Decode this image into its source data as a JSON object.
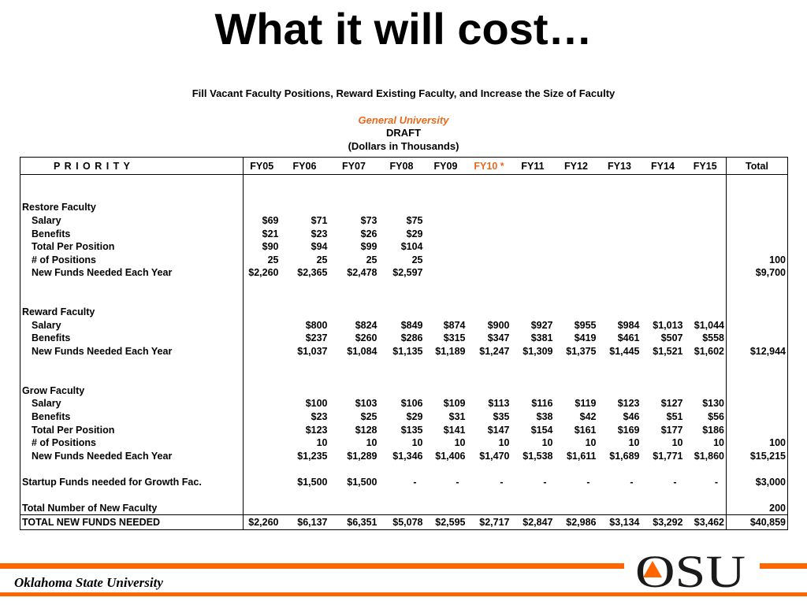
{
  "header": {
    "title": "What it will cost…",
    "subtitle": "Fill Vacant Faculty Positions, Reward Existing Faculty, and Increase the Size of  Faculty",
    "org": "General University",
    "status": "DRAFT",
    "units": "(Dollars in Thousands)"
  },
  "table": {
    "priority_label": "P R I O R I T Y",
    "years": [
      "FY05",
      "FY06",
      "FY07",
      "FY08",
      "FY09",
      "FY10 *",
      "FY11",
      "FY12",
      "FY13",
      "FY14",
      "FY15"
    ],
    "total_label": "Total",
    "restore": {
      "heading": "Restore Faculty",
      "rows": [
        {
          "label": "Salary",
          "values": [
            "$69",
            "$71",
            "$73",
            "$75",
            "",
            "",
            "",
            "",
            "",
            "",
            ""
          ],
          "total": ""
        },
        {
          "label": "Benefits",
          "values": [
            "$21",
            "$23",
            "$26",
            "$29",
            "",
            "",
            "",
            "",
            "",
            "",
            ""
          ],
          "total": ""
        },
        {
          "label": "Total Per Position",
          "values": [
            "$90",
            "$94",
            "$99",
            "$104",
            "",
            "",
            "",
            "",
            "",
            "",
            ""
          ],
          "total": ""
        },
        {
          "label": "# of Positions",
          "values": [
            "25",
            "25",
            "25",
            "25",
            "",
            "",
            "",
            "",
            "",
            "",
            ""
          ],
          "total": "100"
        },
        {
          "label": "New Funds Needed Each Year",
          "values": [
            "$2,260",
            "$2,365",
            "$2,478",
            "$2,597",
            "",
            "",
            "",
            "",
            "",
            "",
            ""
          ],
          "total": "$9,700"
        }
      ]
    },
    "reward": {
      "heading": "Reward Faculty",
      "rows": [
        {
          "label": "Salary",
          "values": [
            "",
            "$800",
            "$824",
            "$849",
            "$874",
            "$900",
            "$927",
            "$955",
            "$984",
            "$1,013",
            "$1,044"
          ],
          "total": ""
        },
        {
          "label": "Benefits",
          "values": [
            "",
            "$237",
            "$260",
            "$286",
            "$315",
            "$347",
            "$381",
            "$419",
            "$461",
            "$507",
            "$558"
          ],
          "total": ""
        },
        {
          "label": "New Funds Needed Each Year",
          "values": [
            "",
            "$1,037",
            "$1,084",
            "$1,135",
            "$1,189",
            "$1,247",
            "$1,309",
            "$1,375",
            "$1,445",
            "$1,521",
            "$1,602"
          ],
          "total": "$12,944"
        }
      ]
    },
    "grow": {
      "heading": "Grow Faculty",
      "rows": [
        {
          "label": "Salary",
          "values": [
            "",
            "$100",
            "$103",
            "$106",
            "$109",
            "$113",
            "$116",
            "$119",
            "$123",
            "$127",
            "$130"
          ],
          "total": ""
        },
        {
          "label": "Benefits",
          "values": [
            "",
            "$23",
            "$25",
            "$29",
            "$31",
            "$35",
            "$38",
            "$42",
            "$46",
            "$51",
            "$56"
          ],
          "total": ""
        },
        {
          "label": "Total Per Position",
          "values": [
            "",
            "$123",
            "$128",
            "$135",
            "$141",
            "$147",
            "$154",
            "$161",
            "$169",
            "$177",
            "$186"
          ],
          "total": ""
        },
        {
          "label": "# of Positions",
          "values": [
            "",
            "10",
            "10",
            "10",
            "10",
            "10",
            "10",
            "10",
            "10",
            "10",
            "10"
          ],
          "total": "100"
        },
        {
          "label": "New Funds Needed Each Year",
          "values": [
            "",
            "$1,235",
            "$1,289",
            "$1,346",
            "$1,406",
            "$1,470",
            "$1,538",
            "$1,611",
            "$1,689",
            "$1,771",
            "$1,860"
          ],
          "total": "$15,215"
        }
      ]
    },
    "startup": {
      "label": "Startup Funds needed for Growth Fac.",
      "values": [
        "",
        "$1,500",
        "$1,500",
        "-",
        "-",
        "-",
        "-",
        "-",
        "-",
        "-",
        "-"
      ],
      "total": "$3,000"
    },
    "new_faculty": {
      "label": "Total Number of New Faculty",
      "total": "200"
    },
    "grand_total": {
      "label": "TOTAL  NEW FUNDS NEEDED",
      "values": [
        "$2,260",
        "$6,137",
        "$6,351",
        "$5,078",
        "$2,595",
        "$2,717",
        "$2,847",
        "$2,986",
        "$3,134",
        "$3,292",
        "$3,462"
      ],
      "total": "$40,859"
    }
  },
  "footer": {
    "university": "Oklahoma State University",
    "logo_text": "OSU",
    "accent_color": "#ff6600"
  }
}
